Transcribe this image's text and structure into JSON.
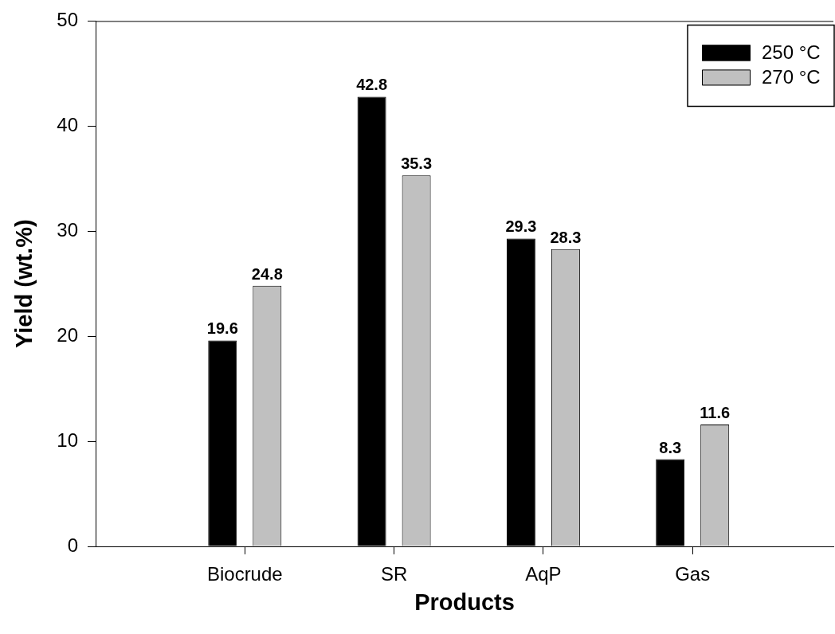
{
  "chart_data": {
    "type": "bar",
    "xlabel": "Products",
    "ylabel": "Yield (wt.%)",
    "categories": [
      "Biocrude",
      "SR",
      "AqP",
      "Gas"
    ],
    "series": [
      {
        "name": "250 °C",
        "color": "#000000",
        "values": [
          19.6,
          42.8,
          29.3,
          8.3
        ]
      },
      {
        "name": "270 °C",
        "color": "#c0c0c0",
        "values": [
          24.8,
          35.3,
          28.3,
          11.6
        ]
      }
    ],
    "ylim": [
      0,
      50
    ],
    "yticks": [
      0,
      10,
      20,
      30,
      40,
      50
    ],
    "legend": "top right",
    "data_labels": true
  }
}
